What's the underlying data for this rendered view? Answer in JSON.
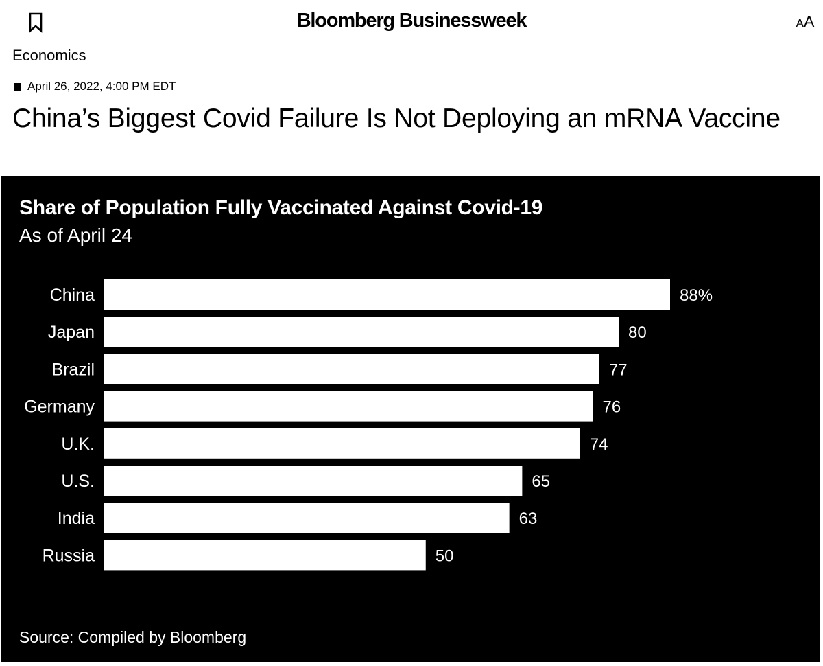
{
  "header": {
    "brand": "Bloomberg Businessweek",
    "bookmark_icon": "bookmark-icon",
    "text_size_small": "A",
    "text_size_large": "A"
  },
  "article": {
    "section": "Economics",
    "date": "April 26, 2022, 4:00 PM EDT",
    "headline": "China’s Biggest Covid Failure Is Not Deploying an mRNA Vaccine"
  },
  "colors": {
    "panel_background": "#000000",
    "bar": "#ffffff",
    "text_on_panel": "#ffffff"
  },
  "chart_data": {
    "type": "bar",
    "orientation": "horizontal",
    "title": "Share of Population Fully Vaccinated Against Covid-19",
    "subtitle": "As of April 24",
    "source": "Source: Compiled by Bloomberg",
    "categories": [
      "China",
      "Japan",
      "Brazil",
      "Germany",
      "U.K.",
      "U.S.",
      "India",
      "Russia"
    ],
    "values": [
      88,
      80,
      77,
      76,
      74,
      65,
      63,
      50
    ],
    "value_labels": [
      "88%",
      "80",
      "77",
      "76",
      "74",
      "65",
      "63",
      "50"
    ],
    "xlim": [
      0,
      88
    ],
    "grid": false,
    "legend": "none"
  }
}
